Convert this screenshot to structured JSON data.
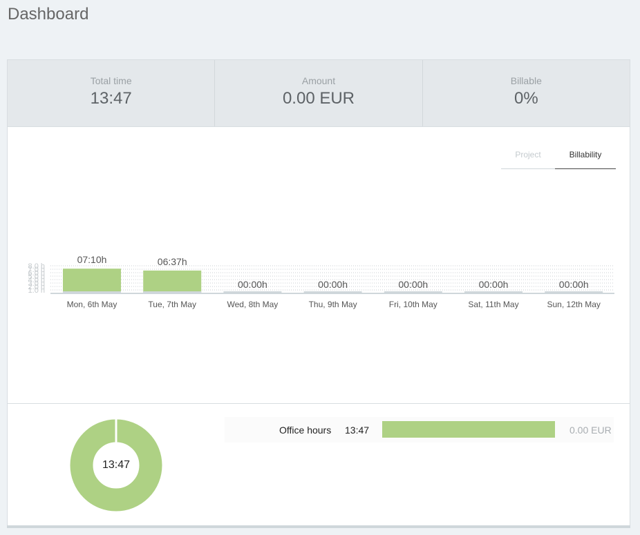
{
  "page": {
    "title": "Dashboard"
  },
  "stats": [
    {
      "label": "Total time",
      "value": "13:47"
    },
    {
      "label": "Amount",
      "value": "0.00 EUR"
    },
    {
      "label": "Billable",
      "value": "0%"
    }
  ],
  "tabs": [
    {
      "label": "Project",
      "active": false
    },
    {
      "label": "Billability",
      "active": true
    }
  ],
  "colors": {
    "bar": "#aed184",
    "baseline": "#cfd7db",
    "grid": "#c9ced2"
  },
  "chart_data": {
    "type": "bar",
    "categories": [
      "Mon, 6th May",
      "Tue, 7th May",
      "Wed, 8th May",
      "Thu, 9th May",
      "Fri, 10th May",
      "Sat, 11th May",
      "Sun, 12th May"
    ],
    "values": [
      7.17,
      6.62,
      0,
      0,
      0,
      0,
      0
    ],
    "data_labels": [
      "07:10h",
      "06:37h",
      "00:00h",
      "00:00h",
      "00:00h",
      "00:00h",
      "00:00h"
    ],
    "yticks": [
      "1.0 h",
      "2.0 h",
      "3.0 h",
      "4.0 h",
      "5.0 h",
      "6.0 h",
      "7.0 h",
      "8.0 h"
    ],
    "ylim": [
      0,
      8
    ],
    "grid": true
  },
  "summary": {
    "donut_label": "13:47",
    "donut_fraction": 1.0,
    "rows": [
      {
        "name": "Office hours",
        "time": "13:47",
        "fraction": 1.0,
        "amount": "0.00 EUR"
      }
    ]
  }
}
